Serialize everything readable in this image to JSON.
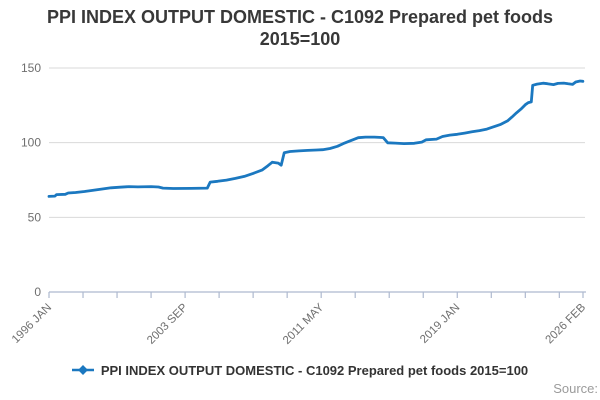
{
  "title": {
    "line1": "PPI INDEX OUTPUT DOMESTIC - C1092 Prepared pet foods",
    "line2": "2015=100"
  },
  "legend": {
    "label": "PPI INDEX OUTPUT DOMESTIC - C1092 Prepared pet foods 2015=100",
    "marker_icon": "line-with-diamond"
  },
  "source": {
    "label": "Source:"
  },
  "colors": {
    "line": "#1b78c0",
    "grid": "#d9d9d9",
    "axis": "#aeb9cf",
    "tick_label": "#6f6f6f",
    "title_text": "#383838",
    "legend_text": "#333333",
    "source_text": "#9b9b9b"
  },
  "chart_data": {
    "type": "line",
    "title": "PPI INDEX OUTPUT DOMESTIC - C1092 Prepared pet foods 2015=100",
    "xlabel": "",
    "ylabel": "",
    "ylim": [
      0,
      150
    ],
    "y_ticks": [
      0,
      50,
      100,
      150
    ],
    "grid": "horizontal",
    "legend_position": "bottom",
    "x_start_year": 1996,
    "x_end_month_index": 361,
    "x_ticks": [
      {
        "month": 0,
        "label": "1996 JAN"
      },
      {
        "month": 23
      },
      {
        "month": 46
      },
      {
        "month": 69
      },
      {
        "month": 92,
        "label": "2003 SEP"
      },
      {
        "month": 115
      },
      {
        "month": 138
      },
      {
        "month": 161
      },
      {
        "month": 184,
        "label": "2011 MAY"
      },
      {
        "month": 207
      },
      {
        "month": 230
      },
      {
        "month": 253
      },
      {
        "month": 276,
        "label": "2019 JAN"
      },
      {
        "month": 299
      },
      {
        "month": 322
      },
      {
        "month": 345
      },
      {
        "month": 361,
        "label": "2026 FEB"
      }
    ],
    "series": [
      {
        "name": "PPI INDEX OUTPUT DOMESTIC - C1092 Prepared pet foods 2015=100",
        "color": "#1b78c0",
        "points": [
          [
            1996.0,
            64.0
          ],
          [
            1996.33,
            64.2
          ],
          [
            1996.42,
            65.2
          ],
          [
            1996.92,
            65.4
          ],
          [
            1997.08,
            66.3
          ],
          [
            1997.5,
            66.6
          ],
          [
            1998.0,
            67.3
          ],
          [
            1998.5,
            68.1
          ],
          [
            1999.0,
            69.0
          ],
          [
            1999.5,
            69.8
          ],
          [
            2000.0,
            70.2
          ],
          [
            2000.5,
            70.6
          ],
          [
            2001.0,
            70.4
          ],
          [
            2001.75,
            70.6
          ],
          [
            2002.17,
            70.3
          ],
          [
            2002.42,
            69.6
          ],
          [
            2003.0,
            69.3
          ],
          [
            2004.0,
            69.4
          ],
          [
            2004.92,
            69.6
          ],
          [
            2005.08,
            73.6
          ],
          [
            2005.5,
            74.1
          ],
          [
            2006.0,
            74.9
          ],
          [
            2006.5,
            76.1
          ],
          [
            2007.0,
            77.4
          ],
          [
            2007.5,
            79.4
          ],
          [
            2008.0,
            81.6
          ],
          [
            2008.33,
            84.6
          ],
          [
            2008.58,
            86.9
          ],
          [
            2008.92,
            86.3
          ],
          [
            2009.08,
            84.9
          ],
          [
            2009.25,
            93.2
          ],
          [
            2009.58,
            94.1
          ],
          [
            2010.08,
            94.5
          ],
          [
            2010.58,
            94.8
          ],
          [
            2011.08,
            95.1
          ],
          [
            2011.42,
            95.3
          ],
          [
            2011.83,
            96.1
          ],
          [
            2012.25,
            97.6
          ],
          [
            2012.58,
            99.4
          ],
          [
            2012.92,
            101.0
          ],
          [
            2013.17,
            102.2
          ],
          [
            2013.42,
            103.3
          ],
          [
            2013.83,
            103.7
          ],
          [
            2014.33,
            103.7
          ],
          [
            2014.83,
            103.4
          ],
          [
            2015.08,
            99.9
          ],
          [
            2015.5,
            99.7
          ],
          [
            2016.0,
            99.4
          ],
          [
            2016.58,
            99.6
          ],
          [
            2017.0,
            100.4
          ],
          [
            2017.25,
            101.9
          ],
          [
            2017.83,
            102.4
          ],
          [
            2018.17,
            104.1
          ],
          [
            2018.58,
            105.1
          ],
          [
            2019.0,
            105.6
          ],
          [
            2019.42,
            106.4
          ],
          [
            2019.83,
            107.3
          ],
          [
            2020.25,
            108.1
          ],
          [
            2020.67,
            109.1
          ],
          [
            2021.0,
            110.4
          ],
          [
            2021.42,
            112.1
          ],
          [
            2021.83,
            114.6
          ],
          [
            2022.08,
            117.1
          ],
          [
            2022.33,
            119.9
          ],
          [
            2022.58,
            122.4
          ],
          [
            2022.83,
            125.4
          ],
          [
            2023.0,
            126.8
          ],
          [
            2023.17,
            127.3
          ],
          [
            2023.25,
            138.4
          ],
          [
            2023.5,
            139.2
          ],
          [
            2023.83,
            139.8
          ],
          [
            2024.08,
            139.5
          ],
          [
            2024.42,
            138.9
          ],
          [
            2024.67,
            139.7
          ],
          [
            2025.0,
            139.9
          ],
          [
            2025.25,
            139.4
          ],
          [
            2025.5,
            139.0
          ],
          [
            2025.67,
            140.6
          ],
          [
            2025.92,
            141.3
          ],
          [
            2026.08,
            141.1
          ]
        ]
      }
    ]
  }
}
